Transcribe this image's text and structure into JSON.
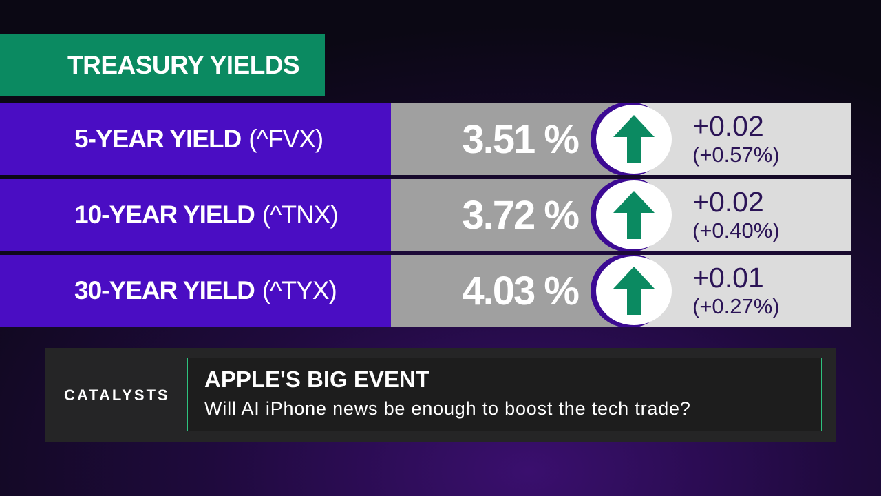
{
  "title": "TREASURY YIELDS",
  "colors": {
    "title_bg": "#0b8a61",
    "label_bg": "#4a0dc3",
    "arrow_up": "#0b8a61",
    "catalyst_border": "#2ec27e"
  },
  "yields": [
    {
      "name": "5-YEAR YIELD",
      "ticker": "(^FVX)",
      "value": "3.51 %",
      "direction_icon": "arrow-up-icon",
      "change": "+0.02",
      "change_pct": "(+0.57%)"
    },
    {
      "name": "10-YEAR YIELD",
      "ticker": "(^TNX)",
      "value": "3.72 %",
      "direction_icon": "arrow-up-icon",
      "change": "+0.02",
      "change_pct": "(+0.40%)"
    },
    {
      "name": "30-YEAR YIELD",
      "ticker": "(^TYX)",
      "value": "4.03 %",
      "direction_icon": "arrow-up-icon",
      "change": "+0.01",
      "change_pct": "(+0.27%)"
    }
  ],
  "catalysts": {
    "label": "CATALYSTS",
    "headline": "APPLE'S BIG EVENT",
    "subtitle": "Will AI iPhone news be enough to boost the tech trade?"
  }
}
